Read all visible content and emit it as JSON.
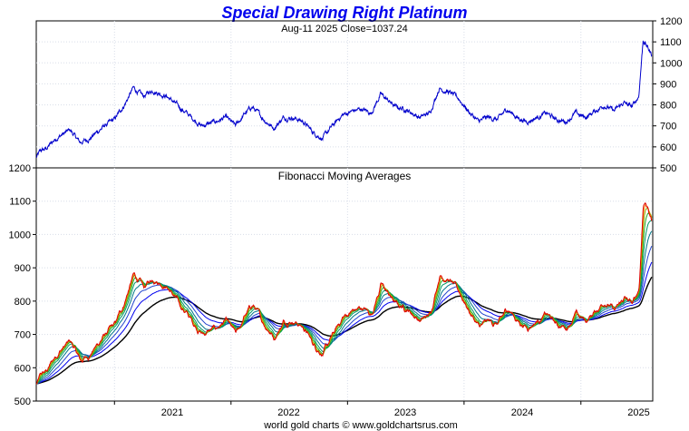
{
  "chart_data": [
    {
      "type": "line",
      "title": "Special Drawing Right Platinum",
      "subtitle": "Aug-11  2025   Close=1037.24",
      "xlabel": "",
      "ylabel": "",
      "ylim": [
        500,
        1200
      ],
      "yticks": [
        500,
        600,
        700,
        800,
        900,
        1000,
        1100,
        1200
      ],
      "y_axis_side": "right",
      "grid": true,
      "line_color": "#0000cc",
      "x": [
        "2020-05-01",
        "2020-05-15",
        "2020-06-01",
        "2020-07-01",
        "2020-08-15",
        "2020-09-15",
        "2020-10-15",
        "2020-12-01",
        "2021-01-01",
        "2021-02-01",
        "2021-02-15",
        "2021-03-01",
        "2021-04-01",
        "2021-05-01",
        "2021-05-15",
        "2021-06-15",
        "2021-07-15",
        "2021-08-15",
        "2021-10-01",
        "2021-11-15",
        "2021-12-15",
        "2022-01-15",
        "2022-02-15",
        "2022-03-08",
        "2022-04-15",
        "2022-05-15",
        "2022-06-15",
        "2022-07-15",
        "2022-08-15",
        "2022-09-15",
        "2022-10-15",
        "2022-11-15",
        "2022-12-15",
        "2023-01-15",
        "2023-02-15",
        "2023-03-15",
        "2023-04-15",
        "2023-05-01",
        "2023-06-01",
        "2023-07-01",
        "2023-08-15",
        "2023-09-15",
        "2023-10-15",
        "2023-11-15",
        "2023-12-15",
        "2024-01-15",
        "2024-02-15",
        "2024-03-15",
        "2024-04-15",
        "2024-05-15",
        "2024-06-15",
        "2024-07-15",
        "2024-08-15",
        "2024-09-15",
        "2024-10-15",
        "2024-11-15",
        "2024-12-15",
        "2025-01-15",
        "2025-02-15",
        "2025-03-15",
        "2025-04-15",
        "2025-05-15",
        "2025-06-10",
        "2025-07-01",
        "2025-07-15",
        "2025-08-11"
      ],
      "values": [
        550,
        580,
        590,
        640,
        680,
        620,
        640,
        700,
        730,
        800,
        840,
        880,
        840,
        870,
        860,
        840,
        800,
        760,
        700,
        720,
        740,
        700,
        760,
        790,
        730,
        690,
        740,
        740,
        720,
        670,
        640,
        700,
        750,
        770,
        780,
        760,
        850,
        830,
        790,
        780,
        740,
        760,
        880,
        860,
        830,
        770,
        720,
        740,
        730,
        780,
        740,
        720,
        740,
        760,
        730,
        720,
        760,
        740,
        770,
        800,
        770,
        810,
        790,
        840,
        1110,
        1037.24
      ]
    },
    {
      "type": "line",
      "title": "Fibonacci Moving Averages",
      "xlabel": "",
      "ylabel": "",
      "ylim": [
        500,
        1200
      ],
      "yticks": [
        500,
        600,
        700,
        800,
        900,
        1000,
        1100,
        1200
      ],
      "y_axis_side": "left",
      "xticks": [
        "2021",
        "2022",
        "2023",
        "2024",
        "2025"
      ],
      "grid": true,
      "series_colors": [
        "#dd0000",
        "#ff8800",
        "#88aa00",
        "#22aa22",
        "#009966",
        "#007788",
        "#2244cc",
        "#0000ee",
        "#000000"
      ]
    }
  ],
  "footer": "world gold charts © www.goldchartsrus.com"
}
